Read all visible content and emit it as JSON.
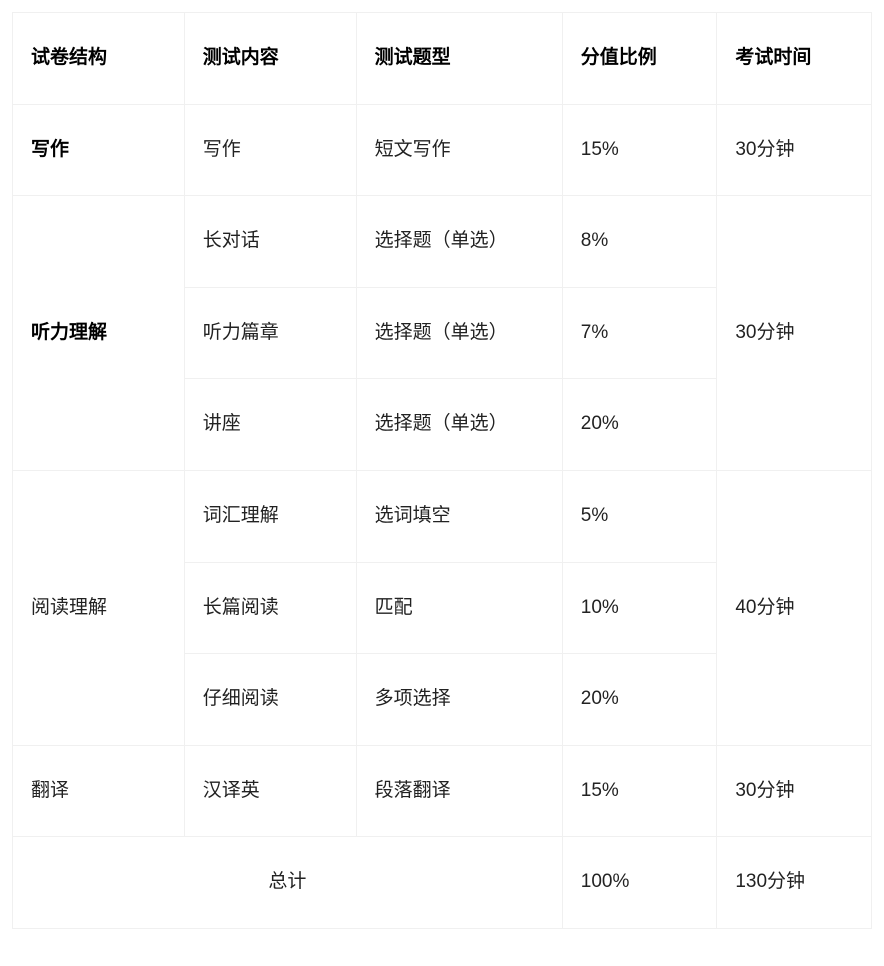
{
  "table": {
    "columns": [
      "试卷结构",
      "测试内容",
      "测试题型",
      "分值比例",
      "考试时间"
    ],
    "border_color": "#f0f0f0",
    "background_color": "#ffffff",
    "text_color": "#000000",
    "header_fontweight": 700,
    "body_fontweight": 400,
    "fontsize": 19,
    "cell_padding_v": 32,
    "cell_padding_h": 18,
    "column_widths_pct": [
      20,
      20,
      24,
      18,
      18
    ],
    "sections": [
      {
        "structure": "写作",
        "structure_bold": true,
        "duration": "30分钟",
        "rows": [
          {
            "content": "写作",
            "type": "短文写作",
            "percent": "15%"
          }
        ]
      },
      {
        "structure": "听力理解",
        "structure_bold": true,
        "duration": "30分钟",
        "rows": [
          {
            "content": "长对话",
            "type": "选择题（单选）",
            "percent": "8%"
          },
          {
            "content": "听力篇章",
            "type": "选择题（单选）",
            "percent": "7%"
          },
          {
            "content": "讲座",
            "type": "选择题（单选）",
            "percent": "20%"
          }
        ]
      },
      {
        "structure": "阅读理解",
        "structure_bold": false,
        "duration": "40分钟",
        "rows": [
          {
            "content": "词汇理解",
            "type": "选词填空",
            "percent": "5%"
          },
          {
            "content": "长篇阅读",
            "type": "匹配",
            "percent": "10%"
          },
          {
            "content": "仔细阅读",
            "type": "多项选择",
            "percent": "20%"
          }
        ]
      },
      {
        "structure": "翻译",
        "structure_bold": false,
        "duration": "30分钟",
        "rows": [
          {
            "content": "汉译英",
            "type": "段落翻译",
            "percent": "15%"
          }
        ]
      }
    ],
    "total": {
      "label": "总计",
      "percent": "100%",
      "duration": "130分钟"
    }
  }
}
